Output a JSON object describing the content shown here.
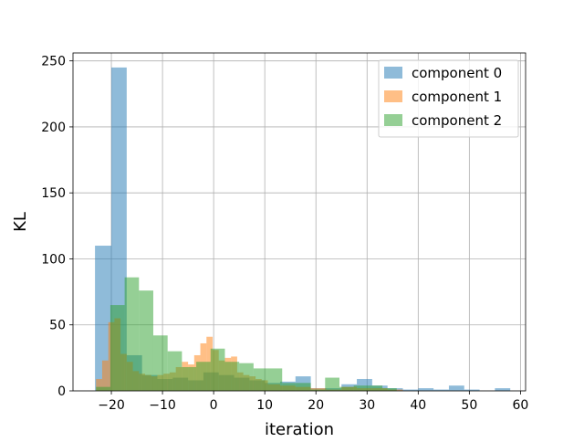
{
  "chart_data": {
    "type": "histogram",
    "title": "",
    "xlabel": "iteration",
    "ylabel": "KL",
    "xlim": [
      -27.5,
      61
    ],
    "ylim": [
      0,
      256
    ],
    "xticks": [
      -20,
      -10,
      0,
      10,
      20,
      30,
      40,
      50,
      60
    ],
    "yticks": [
      0,
      50,
      100,
      150,
      200,
      250
    ],
    "grid": true,
    "legend_position": "top-right",
    "series": [
      {
        "name": "component 0",
        "color": "#1f77b4",
        "opacity": 0.5,
        "bins": [
          {
            "x0": -23.2,
            "x1": -20.0,
            "count": 110
          },
          {
            "x0": -20.0,
            "x1": -17.0,
            "count": 245
          },
          {
            "x0": -17.0,
            "x1": -14.0,
            "count": 27
          },
          {
            "x0": -14.0,
            "x1": -11.0,
            "count": 12
          },
          {
            "x0": -11.0,
            "x1": -8.0,
            "count": 9
          },
          {
            "x0": -8.0,
            "x1": -5.0,
            "count": 10
          },
          {
            "x0": -5.0,
            "x1": -2.0,
            "count": 8
          },
          {
            "x0": -2.0,
            "x1": 1.0,
            "count": 14
          },
          {
            "x0": 1.0,
            "x1": 4.0,
            "count": 12
          },
          {
            "x0": 4.0,
            "x1": 7.0,
            "count": 10
          },
          {
            "x0": 7.0,
            "x1": 10.0,
            "count": 8
          },
          {
            "x0": 10.0,
            "x1": 13.0,
            "count": 6
          },
          {
            "x0": 13.0,
            "x1": 16.0,
            "count": 7
          },
          {
            "x0": 16.0,
            "x1": 19.0,
            "count": 11
          },
          {
            "x0": 19.0,
            "x1": 22.0,
            "count": 2
          },
          {
            "x0": 22.0,
            "x1": 25.0,
            "count": 2
          },
          {
            "x0": 25.0,
            "x1": 28.0,
            "count": 5
          },
          {
            "x0": 28.0,
            "x1": 31.0,
            "count": 9
          },
          {
            "x0": 31.0,
            "x1": 34.0,
            "count": 4
          },
          {
            "x0": 34.0,
            "x1": 37.0,
            "count": 2
          },
          {
            "x0": 37.0,
            "x1": 40.0,
            "count": 1
          },
          {
            "x0": 40.0,
            "x1": 43.0,
            "count": 2
          },
          {
            "x0": 43.0,
            "x1": 46.0,
            "count": 1
          },
          {
            "x0": 46.0,
            "x1": 49.0,
            "count": 4
          },
          {
            "x0": 49.0,
            "x1": 52.0,
            "count": 1
          },
          {
            "x0": 52.0,
            "x1": 55.0,
            "count": 0
          },
          {
            "x0": 55.0,
            "x1": 58.0,
            "count": 2
          }
        ]
      },
      {
        "name": "component 1",
        "color": "#ff7f0e",
        "opacity": 0.5,
        "bins": [
          {
            "x0": -23.0,
            "x1": -21.8,
            "count": 9
          },
          {
            "x0": -21.8,
            "x1": -20.6,
            "count": 23
          },
          {
            "x0": -20.6,
            "x1": -19.4,
            "count": 52
          },
          {
            "x0": -19.4,
            "x1": -18.2,
            "count": 55
          },
          {
            "x0": -18.2,
            "x1": -17.0,
            "count": 28
          },
          {
            "x0": -17.0,
            "x1": -15.8,
            "count": 22
          },
          {
            "x0": -15.8,
            "x1": -14.6,
            "count": 15
          },
          {
            "x0": -14.6,
            "x1": -13.4,
            "count": 13
          },
          {
            "x0": -13.4,
            "x1": -12.2,
            "count": 12
          },
          {
            "x0": -12.2,
            "x1": -11.0,
            "count": 11
          },
          {
            "x0": -11.0,
            "x1": -9.8,
            "count": 12
          },
          {
            "x0": -9.8,
            "x1": -8.6,
            "count": 13
          },
          {
            "x0": -8.6,
            "x1": -7.4,
            "count": 14
          },
          {
            "x0": -7.4,
            "x1": -6.2,
            "count": 18
          },
          {
            "x0": -6.2,
            "x1": -5.0,
            "count": 22
          },
          {
            "x0": -5.0,
            "x1": -3.8,
            "count": 20
          },
          {
            "x0": -3.8,
            "x1": -2.6,
            "count": 27
          },
          {
            "x0": -2.6,
            "x1": -1.4,
            "count": 36
          },
          {
            "x0": -1.4,
            "x1": -0.2,
            "count": 41
          },
          {
            "x0": -0.2,
            "x1": 1.0,
            "count": 31
          },
          {
            "x0": 1.0,
            "x1": 2.2,
            "count": 23
          },
          {
            "x0": 2.2,
            "x1": 3.4,
            "count": 25
          },
          {
            "x0": 3.4,
            "x1": 4.6,
            "count": 26
          },
          {
            "x0": 4.6,
            "x1": 5.8,
            "count": 14
          },
          {
            "x0": 5.8,
            "x1": 7.0,
            "count": 12
          },
          {
            "x0": 7.0,
            "x1": 8.2,
            "count": 11
          },
          {
            "x0": 8.2,
            "x1": 9.4,
            "count": 9
          },
          {
            "x0": 9.4,
            "x1": 10.6,
            "count": 8
          },
          {
            "x0": 10.6,
            "x1": 13.0,
            "count": 5
          },
          {
            "x0": 13.0,
            "x1": 16.0,
            "count": 4
          },
          {
            "x0": 16.0,
            "x1": 19.0,
            "count": 3
          },
          {
            "x0": 19.0,
            "x1": 22.0,
            "count": 2
          },
          {
            "x0": 22.0,
            "x1": 25.0,
            "count": 1
          },
          {
            "x0": 25.0,
            "x1": 28.0,
            "count": 3
          },
          {
            "x0": 28.0,
            "x1": 31.0,
            "count": 2
          },
          {
            "x0": 31.0,
            "x1": 34.0,
            "count": 2
          },
          {
            "x0": 34.0,
            "x1": 37.0,
            "count": 1
          }
        ]
      },
      {
        "name": "component 2",
        "color": "#2ca02c",
        "opacity": 0.5,
        "bins": [
          {
            "x0": -23.0,
            "x1": -20.2,
            "count": 3
          },
          {
            "x0": -20.2,
            "x1": -17.4,
            "count": 65
          },
          {
            "x0": -17.4,
            "x1": -14.6,
            "count": 86
          },
          {
            "x0": -14.6,
            "x1": -11.8,
            "count": 76
          },
          {
            "x0": -11.8,
            "x1": -9.0,
            "count": 42
          },
          {
            "x0": -9.0,
            "x1": -6.2,
            "count": 30
          },
          {
            "x0": -6.2,
            "x1": -3.4,
            "count": 18
          },
          {
            "x0": -3.4,
            "x1": -0.6,
            "count": 22
          },
          {
            "x0": -0.6,
            "x1": 2.2,
            "count": 32
          },
          {
            "x0": 2.2,
            "x1": 5.0,
            "count": 22
          },
          {
            "x0": 5.0,
            "x1": 7.8,
            "count": 21
          },
          {
            "x0": 7.8,
            "x1": 10.6,
            "count": 17
          },
          {
            "x0": 10.6,
            "x1": 13.4,
            "count": 17
          },
          {
            "x0": 13.4,
            "x1": 16.2,
            "count": 6
          },
          {
            "x0": 16.2,
            "x1": 19.0,
            "count": 6
          },
          {
            "x0": 19.0,
            "x1": 21.8,
            "count": 1
          },
          {
            "x0": 21.8,
            "x1": 24.6,
            "count": 10
          },
          {
            "x0": 24.6,
            "x1": 27.4,
            "count": 3
          },
          {
            "x0": 27.4,
            "x1": 30.2,
            "count": 4
          },
          {
            "x0": 30.2,
            "x1": 33.0,
            "count": 4
          },
          {
            "x0": 33.0,
            "x1": 35.8,
            "count": 2
          }
        ]
      }
    ]
  }
}
